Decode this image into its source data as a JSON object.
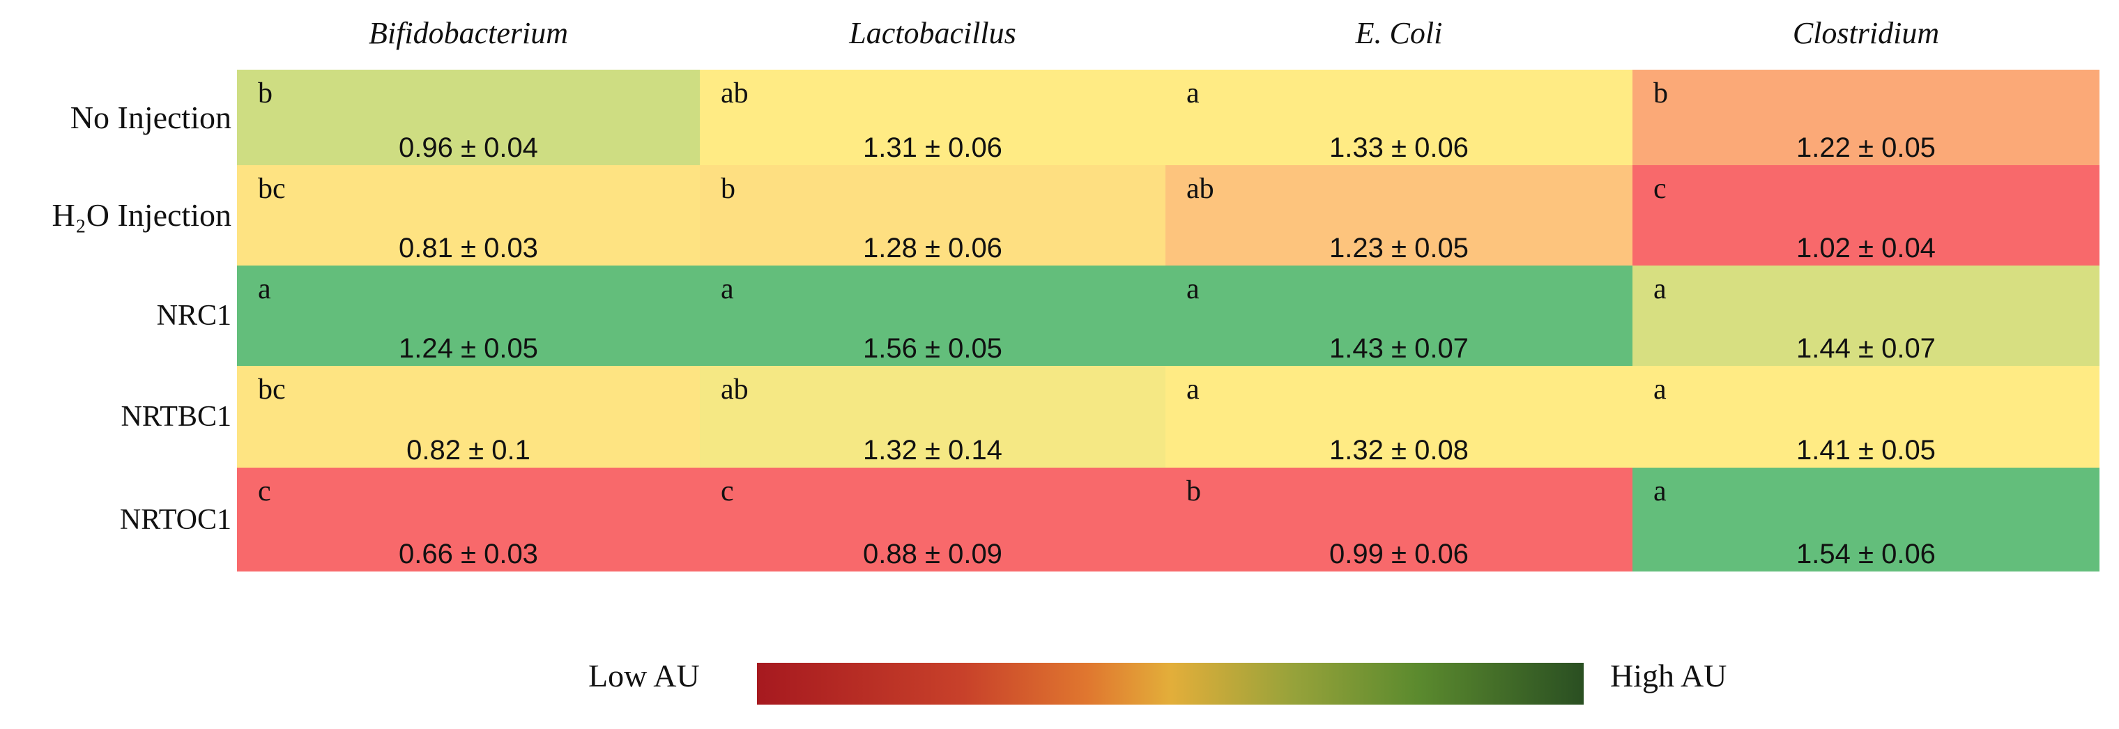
{
  "chart_data": {
    "type": "heatmap",
    "columns": [
      "Bifidobacterium",
      "Lactobacillus",
      "E. Coli",
      "Clostridium"
    ],
    "rows": [
      "No Injection",
      "H₂O Injection",
      "NRC1",
      "NRTBC1",
      "NRTOC1"
    ],
    "cells": [
      [
        {
          "letter": "b",
          "value": "0.96 ± 0.04",
          "color": "#cedd82"
        },
        {
          "letter": "ab",
          "value": "1.31 ± 0.06",
          "color": "#ffeb84"
        },
        {
          "letter": "a",
          "value": "1.33 ± 0.06",
          "color": "#ffeb84"
        },
        {
          "letter": "b",
          "value": "1.22 ± 0.05",
          "color": "#fba977"
        }
      ],
      [
        {
          "letter": "bc",
          "value": "0.81 ± 0.03",
          "color": "#fee382"
        },
        {
          "letter": "b",
          "value": "1.28 ± 0.06",
          "color": "#fedf81"
        },
        {
          "letter": "ab",
          "value": "1.23 ± 0.05",
          "color": "#fdc47d"
        },
        {
          "letter": "c",
          "value": "1.02 ± 0.04",
          "color": "#f8696b"
        }
      ],
      [
        {
          "letter": "a",
          "value": "1.24 ± 0.05",
          "color": "#63be7b"
        },
        {
          "letter": "a",
          "value": "1.56 ± 0.05",
          "color": "#63be7b"
        },
        {
          "letter": "a",
          "value": "1.43 ± 0.07",
          "color": "#63be7b"
        },
        {
          "letter": "a",
          "value": "1.44 ± 0.07",
          "color": "#d7df81"
        }
      ],
      [
        {
          "letter": "bc",
          "value": "0.82 ± 0.1",
          "color": "#fee482"
        },
        {
          "letter": "ab",
          "value": "1.32 ± 0.14",
          "color": "#f5e884"
        },
        {
          "letter": "a",
          "value": "1.32 ± 0.08",
          "color": "#ffeb84"
        },
        {
          "letter": "a",
          "value": "1.41 ± 0.05",
          "color": "#ffeb84"
        }
      ],
      [
        {
          "letter": "c",
          "value": "0.66 ± 0.03",
          "color": "#f8696b"
        },
        {
          "letter": "c",
          "value": "0.88 ± 0.09",
          "color": "#f8696b"
        },
        {
          "letter": "b",
          "value": "0.99 ± 0.06",
          "color": "#f8696b"
        },
        {
          "letter": "a",
          "value": "1.54 ± 0.06",
          "color": "#63be7b"
        }
      ]
    ],
    "legend": {
      "low_label": "Low AU",
      "high_label": "High AU",
      "low_color": "#a6191f",
      "mid_color": "#e3ae3a",
      "high_color": "#2a4f22"
    }
  }
}
